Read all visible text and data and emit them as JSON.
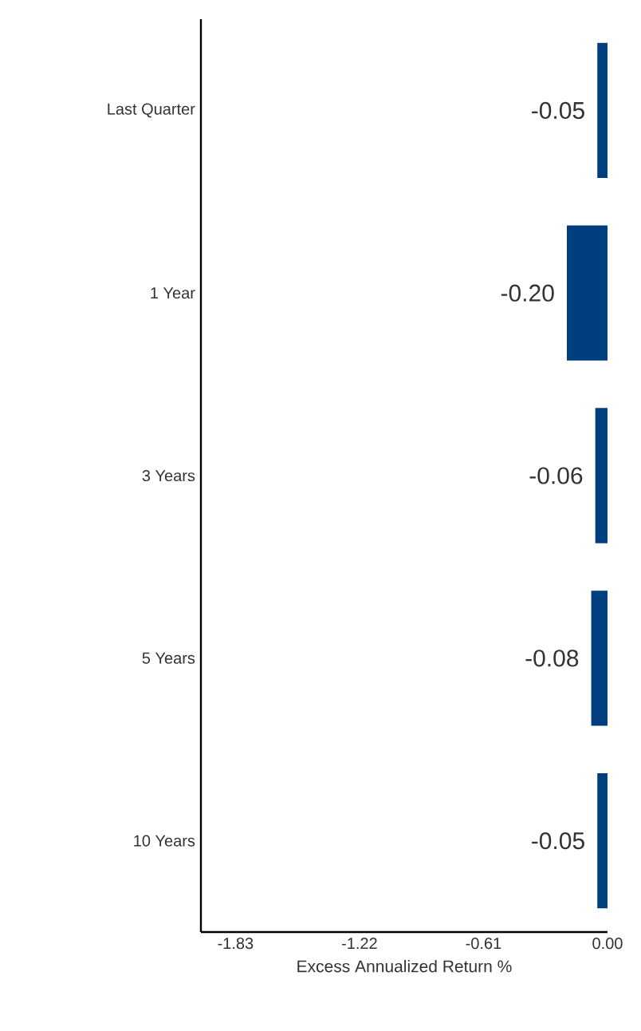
{
  "chart_data": {
    "type": "bar",
    "orientation": "horizontal",
    "categories": [
      "Last Quarter",
      "1 Year",
      "3 Years",
      "5 Years",
      "10 Years"
    ],
    "values": [
      -0.05,
      -0.2,
      -0.06,
      -0.08,
      -0.05
    ],
    "value_labels": [
      "-0.05",
      "-0.20",
      "-0.06",
      "-0.08",
      "-0.05"
    ],
    "color": "#003f7f",
    "xlim": [
      -2.0,
      0.0
    ],
    "xticks": [
      -1.83,
      -1.22,
      -0.61,
      {
        "value": 0,
        "label": "0.00"
      }
    ],
    "xlabel": "Excess Annualized Return %"
  }
}
